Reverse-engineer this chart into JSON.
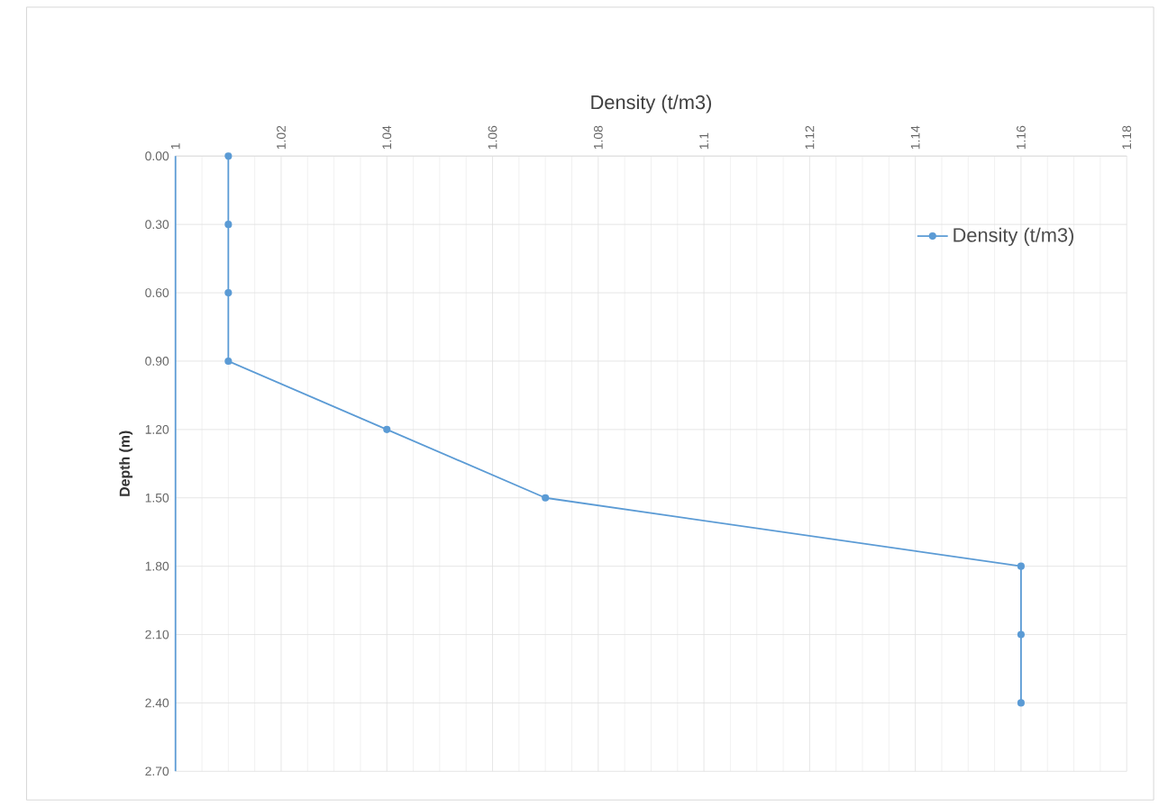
{
  "chart_data": {
    "type": "line",
    "xlabel": "Density  (t/m3)",
    "ylabel": "Depth (m)",
    "xlim": [
      1,
      1.18
    ],
    "xticks": [
      1,
      1.02,
      1.04,
      1.06,
      1.08,
      1.1,
      1.12,
      1.14,
      1.16,
      1.18
    ],
    "ylim": [
      2.7,
      0
    ],
    "yticks": [
      {
        "value": 0,
        "label": "0.00"
      },
      {
        "value": 0.3,
        "label": "0.30"
      },
      {
        "value": 0.6,
        "label": "0.60"
      },
      {
        "value": 0.9,
        "label": "0.90"
      },
      {
        "value": 1.2,
        "label": "1.20"
      },
      {
        "value": 1.5,
        "label": "1.50"
      },
      {
        "value": 1.8,
        "label": "1.80"
      },
      {
        "value": 2.1,
        "label": "2.10"
      },
      {
        "value": 2.4,
        "label": "2.40"
      },
      {
        "value": 2.7,
        "label": "2.70"
      }
    ],
    "series": [
      {
        "name": "Density  (t/m3)",
        "color": "#5b9bd5",
        "x": [
          1.01,
          1.01,
          1.01,
          1.01,
          1.04,
          1.07,
          1.16,
          1.16,
          1.16
        ],
        "values": [
          0,
          0.3,
          0.6,
          0.9,
          1.2,
          1.5,
          1.8,
          2.1,
          2.4
        ]
      }
    ],
    "grid": true,
    "legend": "top right",
    "marker": "circle",
    "line_style": "solid"
  }
}
